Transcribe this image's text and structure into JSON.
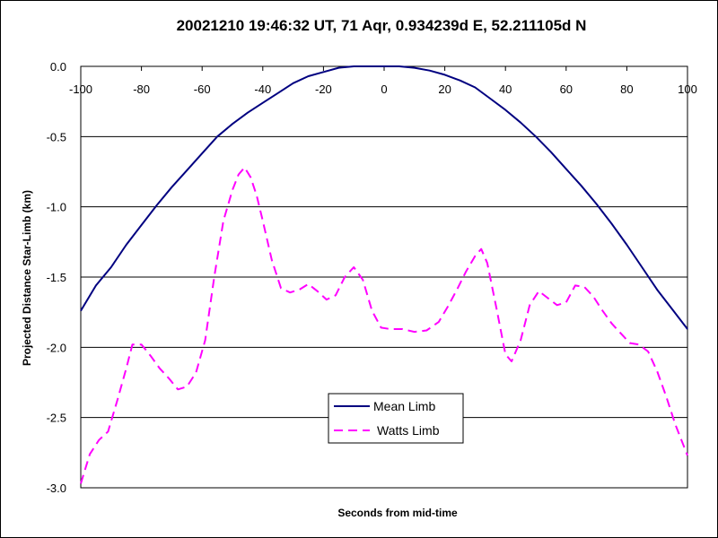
{
  "chart_data": {
    "type": "line",
    "title": "20021210 19:46:32 UT, 71 Aqr, 0.934239d E, 52.211105d N",
    "xlabel": "Seconds from mid-time",
    "ylabel": "Projected Distance Star-Limb (km)",
    "xlim": [
      -100,
      100
    ],
    "ylim": [
      -3.0,
      0.0
    ],
    "x_ticks": [
      -100,
      -80,
      -60,
      -40,
      -20,
      0,
      20,
      40,
      60,
      80,
      100
    ],
    "y_ticks": [
      0.0,
      -0.5,
      -1.0,
      -1.5,
      -2.0,
      -2.5,
      -3.0
    ],
    "x_tick_labels": [
      "-100",
      "-80",
      "-60",
      "-40",
      "-20",
      "0",
      "20",
      "40",
      "60",
      "80",
      "100"
    ],
    "y_tick_labels": [
      "0.0",
      "-0.5",
      "-1.0",
      "-1.5",
      "-2.0",
      "-2.5",
      "-3.0"
    ],
    "grid": "horizontal",
    "legend_position": "bottom-center",
    "series": [
      {
        "name": "Mean Limb",
        "color": "#000080",
        "style": "solid",
        "points": [
          [
            -100,
            -1.74
          ],
          [
            -95,
            -1.56
          ],
          [
            -90,
            -1.43
          ],
          [
            -85,
            -1.27
          ],
          [
            -80,
            -1.13
          ],
          [
            -75,
            -0.99
          ],
          [
            -70,
            -0.86
          ],
          [
            -65,
            -0.74
          ],
          [
            -60,
            -0.62
          ],
          [
            -55,
            -0.5
          ],
          [
            -50,
            -0.41
          ],
          [
            -45,
            -0.33
          ],
          [
            -40,
            -0.26
          ],
          [
            -35,
            -0.19
          ],
          [
            -30,
            -0.12
          ],
          [
            -25,
            -0.07
          ],
          [
            -20,
            -0.04
          ],
          [
            -15,
            -0.01
          ],
          [
            -10,
            0.0
          ],
          [
            -5,
            0.0
          ],
          [
            0,
            0.0
          ],
          [
            5,
            0.0
          ],
          [
            10,
            -0.01
          ],
          [
            15,
            -0.03
          ],
          [
            20,
            -0.06
          ],
          [
            25,
            -0.1
          ],
          [
            30,
            -0.15
          ],
          [
            35,
            -0.23
          ],
          [
            40,
            -0.31
          ],
          [
            45,
            -0.4
          ],
          [
            50,
            -0.5
          ],
          [
            55,
            -0.61
          ],
          [
            60,
            -0.73
          ],
          [
            65,
            -0.85
          ],
          [
            70,
            -0.98
          ],
          [
            75,
            -1.12
          ],
          [
            80,
            -1.27
          ],
          [
            85,
            -1.43
          ],
          [
            90,
            -1.59
          ],
          [
            95,
            -1.73
          ],
          [
            100,
            -1.87
          ]
        ]
      },
      {
        "name": "Watts Limb",
        "color": "#ff00ff",
        "style": "dashed",
        "points": [
          [
            -100,
            -2.97
          ],
          [
            -97,
            -2.76
          ],
          [
            -94,
            -2.66
          ],
          [
            -91,
            -2.6
          ],
          [
            -88,
            -2.38
          ],
          [
            -85,
            -2.15
          ],
          [
            -83,
            -1.98
          ],
          [
            -80,
            -1.98
          ],
          [
            -77,
            -2.06
          ],
          [
            -74,
            -2.15
          ],
          [
            -71,
            -2.22
          ],
          [
            -68,
            -2.3
          ],
          [
            -65,
            -2.28
          ],
          [
            -62,
            -2.18
          ],
          [
            -59,
            -1.95
          ],
          [
            -56,
            -1.5
          ],
          [
            -53,
            -1.1
          ],
          [
            -50,
            -0.88
          ],
          [
            -48,
            -0.77
          ],
          [
            -46,
            -0.72
          ],
          [
            -44,
            -0.79
          ],
          [
            -42,
            -0.92
          ],
          [
            -40,
            -1.1
          ],
          [
            -37,
            -1.38
          ],
          [
            -34,
            -1.58
          ],
          [
            -31,
            -1.61
          ],
          [
            -28,
            -1.59
          ],
          [
            -25,
            -1.55
          ],
          [
            -22,
            -1.6
          ],
          [
            -19,
            -1.66
          ],
          [
            -16,
            -1.63
          ],
          [
            -13,
            -1.5
          ],
          [
            -10,
            -1.43
          ],
          [
            -7,
            -1.52
          ],
          [
            -4,
            -1.74
          ],
          [
            -1,
            -1.86
          ],
          [
            2,
            -1.87
          ],
          [
            6,
            -1.87
          ],
          [
            10,
            -1.89
          ],
          [
            14,
            -1.88
          ],
          [
            18,
            -1.82
          ],
          [
            21,
            -1.71
          ],
          [
            24,
            -1.59
          ],
          [
            27,
            -1.46
          ],
          [
            30,
            -1.35
          ],
          [
            32,
            -1.3
          ],
          [
            34,
            -1.4
          ],
          [
            37,
            -1.72
          ],
          [
            40,
            -2.05
          ],
          [
            42,
            -2.1
          ],
          [
            45,
            -1.95
          ],
          [
            48,
            -1.7
          ],
          [
            51,
            -1.6
          ],
          [
            54,
            -1.65
          ],
          [
            57,
            -1.7
          ],
          [
            60,
            -1.68
          ],
          [
            63,
            -1.56
          ],
          [
            66,
            -1.57
          ],
          [
            69,
            -1.64
          ],
          [
            72,
            -1.74
          ],
          [
            75,
            -1.83
          ],
          [
            78,
            -1.9
          ],
          [
            81,
            -1.97
          ],
          [
            84,
            -1.98
          ],
          [
            87,
            -2.03
          ],
          [
            90,
            -2.17
          ],
          [
            93,
            -2.35
          ],
          [
            96,
            -2.55
          ],
          [
            100,
            -2.77
          ]
        ]
      }
    ]
  }
}
